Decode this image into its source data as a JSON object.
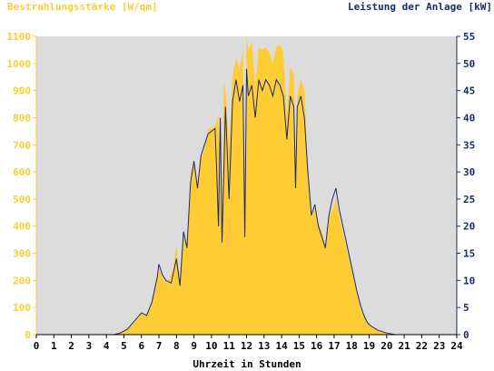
{
  "chart_data": {
    "type": "area",
    "title_left": "Bestrahlungsstärke [W/qm]",
    "title_right": "Leistung der Anlage [kW]",
    "xlabel": "Uhrzeit in Stunden",
    "xlim": [
      0,
      24
    ],
    "x_ticks": [
      "0",
      "1",
      "2",
      "3",
      "4",
      "5",
      "6",
      "7",
      "8",
      "9",
      "10",
      "11",
      "12",
      "13",
      "14",
      "15",
      "16",
      "17",
      "18",
      "19",
      "20",
      "21",
      "22",
      "23",
      "24"
    ],
    "y_left_lim": [
      0,
      1100
    ],
    "y_left_ticks": [
      "0",
      "100",
      "200",
      "300",
      "400",
      "500",
      "600",
      "700",
      "800",
      "900",
      "1000",
      "1100"
    ],
    "y_right_lim": [
      0,
      55
    ],
    "y_right_ticks": [
      "0",
      "5",
      "10",
      "15",
      "20",
      "25",
      "30",
      "35",
      "40",
      "45",
      "50",
      "55"
    ],
    "grid": false,
    "colors": {
      "plot_background": "#dcdcdc",
      "irradiance_fill": "#ffcc33",
      "power_line": "#1a2a6e",
      "left_axis_text": "#ffcc33",
      "right_axis_text": "#1a2a6e"
    },
    "series": [
      {
        "name": "Bestrahlungsstärke [W/qm]",
        "axis": "left",
        "style": "filled-area",
        "points": [
          [
            0,
            0
          ],
          [
            4.2,
            0
          ],
          [
            4.6,
            5
          ],
          [
            5.0,
            15
          ],
          [
            5.4,
            30
          ],
          [
            5.8,
            60
          ],
          [
            6.0,
            85
          ],
          [
            6.2,
            70
          ],
          [
            6.5,
            100
          ],
          [
            6.8,
            170
          ],
          [
            7.0,
            245
          ],
          [
            7.2,
            210
          ],
          [
            7.5,
            190
          ],
          [
            7.8,
            240
          ],
          [
            8.0,
            330
          ],
          [
            8.2,
            200
          ],
          [
            8.4,
            370
          ],
          [
            8.6,
            320
          ],
          [
            8.8,
            590
          ],
          [
            9.0,
            640
          ],
          [
            9.2,
            550
          ],
          [
            9.4,
            650
          ],
          [
            9.6,
            680
          ],
          [
            9.8,
            760
          ],
          [
            10.0,
            760
          ],
          [
            10.2,
            770
          ],
          [
            10.4,
            810
          ],
          [
            10.5,
            550
          ],
          [
            10.6,
            420
          ],
          [
            10.7,
            930
          ],
          [
            10.8,
            900
          ],
          [
            11.0,
            700
          ],
          [
            11.2,
            950
          ],
          [
            11.4,
            1020
          ],
          [
            11.6,
            980
          ],
          [
            11.8,
            1050
          ],
          [
            11.9,
            400
          ],
          [
            12.0,
            1100
          ],
          [
            12.1,
            1050
          ],
          [
            12.3,
            1080
          ],
          [
            12.5,
            920
          ],
          [
            12.7,
            1060
          ],
          [
            12.9,
            1050
          ],
          [
            13.1,
            1060
          ],
          [
            13.3,
            1040
          ],
          [
            13.5,
            1000
          ],
          [
            13.7,
            1060
          ],
          [
            13.9,
            1070
          ],
          [
            14.1,
            1040
          ],
          [
            14.3,
            800
          ],
          [
            14.5,
            990
          ],
          [
            14.7,
            960
          ],
          [
            14.8,
            600
          ],
          [
            14.9,
            880
          ],
          [
            15.1,
            940
          ],
          [
            15.3,
            900
          ],
          [
            15.5,
            620
          ],
          [
            15.7,
            430
          ],
          [
            15.9,
            470
          ],
          [
            16.1,
            410
          ],
          [
            16.3,
            380
          ],
          [
            16.5,
            330
          ],
          [
            16.7,
            440
          ],
          [
            16.9,
            460
          ],
          [
            17.1,
            500
          ],
          [
            17.3,
            440
          ],
          [
            17.5,
            380
          ],
          [
            17.7,
            320
          ],
          [
            17.9,
            270
          ],
          [
            18.1,
            210
          ],
          [
            18.3,
            150
          ],
          [
            18.5,
            100
          ],
          [
            18.7,
            70
          ],
          [
            18.9,
            45
          ],
          [
            19.1,
            30
          ],
          [
            19.5,
            15
          ],
          [
            20.0,
            5
          ],
          [
            20.5,
            0
          ],
          [
            24,
            0
          ]
        ]
      },
      {
        "name": "Leistung der Anlage [kW]",
        "axis": "right",
        "style": "line",
        "points": [
          [
            0,
            0
          ],
          [
            4.4,
            0
          ],
          [
            4.8,
            0.3
          ],
          [
            5.2,
            1
          ],
          [
            5.6,
            2.5
          ],
          [
            6.0,
            4
          ],
          [
            6.3,
            3.5
          ],
          [
            6.6,
            6
          ],
          [
            6.9,
            10.5
          ],
          [
            7.0,
            13
          ],
          [
            7.2,
            11
          ],
          [
            7.4,
            10
          ],
          [
            7.7,
            9.5
          ],
          [
            8.0,
            14
          ],
          [
            8.2,
            9
          ],
          [
            8.4,
            19
          ],
          [
            8.6,
            16
          ],
          [
            8.8,
            28
          ],
          [
            9.0,
            32
          ],
          [
            9.2,
            27
          ],
          [
            9.4,
            33
          ],
          [
            9.6,
            35
          ],
          [
            9.8,
            37
          ],
          [
            10.0,
            37.5
          ],
          [
            10.2,
            38
          ],
          [
            10.3,
            30
          ],
          [
            10.4,
            20
          ],
          [
            10.5,
            40
          ],
          [
            10.6,
            17
          ],
          [
            10.8,
            42
          ],
          [
            11.0,
            25
          ],
          [
            11.2,
            43
          ],
          [
            11.4,
            47
          ],
          [
            11.6,
            43
          ],
          [
            11.8,
            46
          ],
          [
            11.9,
            18
          ],
          [
            12.0,
            49
          ],
          [
            12.1,
            44
          ],
          [
            12.3,
            46
          ],
          [
            12.5,
            40
          ],
          [
            12.7,
            47
          ],
          [
            12.9,
            45
          ],
          [
            13.1,
            47
          ],
          [
            13.3,
            46
          ],
          [
            13.5,
            44
          ],
          [
            13.7,
            47
          ],
          [
            13.9,
            46
          ],
          [
            14.1,
            44
          ],
          [
            14.3,
            36
          ],
          [
            14.5,
            44
          ],
          [
            14.7,
            42
          ],
          [
            14.8,
            27
          ],
          [
            14.9,
            42
          ],
          [
            15.1,
            44
          ],
          [
            15.3,
            40
          ],
          [
            15.5,
            30
          ],
          [
            15.7,
            22
          ],
          [
            15.9,
            24
          ],
          [
            16.1,
            20
          ],
          [
            16.3,
            18
          ],
          [
            16.5,
            16
          ],
          [
            16.7,
            22
          ],
          [
            16.9,
            25
          ],
          [
            17.1,
            27
          ],
          [
            17.3,
            23
          ],
          [
            17.5,
            20
          ],
          [
            17.7,
            17
          ],
          [
            17.9,
            14
          ],
          [
            18.1,
            11
          ],
          [
            18.3,
            8
          ],
          [
            18.5,
            5.5
          ],
          [
            18.7,
            3.5
          ],
          [
            18.9,
            2.2
          ],
          [
            19.1,
            1.6
          ],
          [
            19.5,
            0.8
          ],
          [
            20.0,
            0.3
          ],
          [
            20.5,
            0
          ],
          [
            24,
            0
          ]
        ]
      }
    ]
  }
}
